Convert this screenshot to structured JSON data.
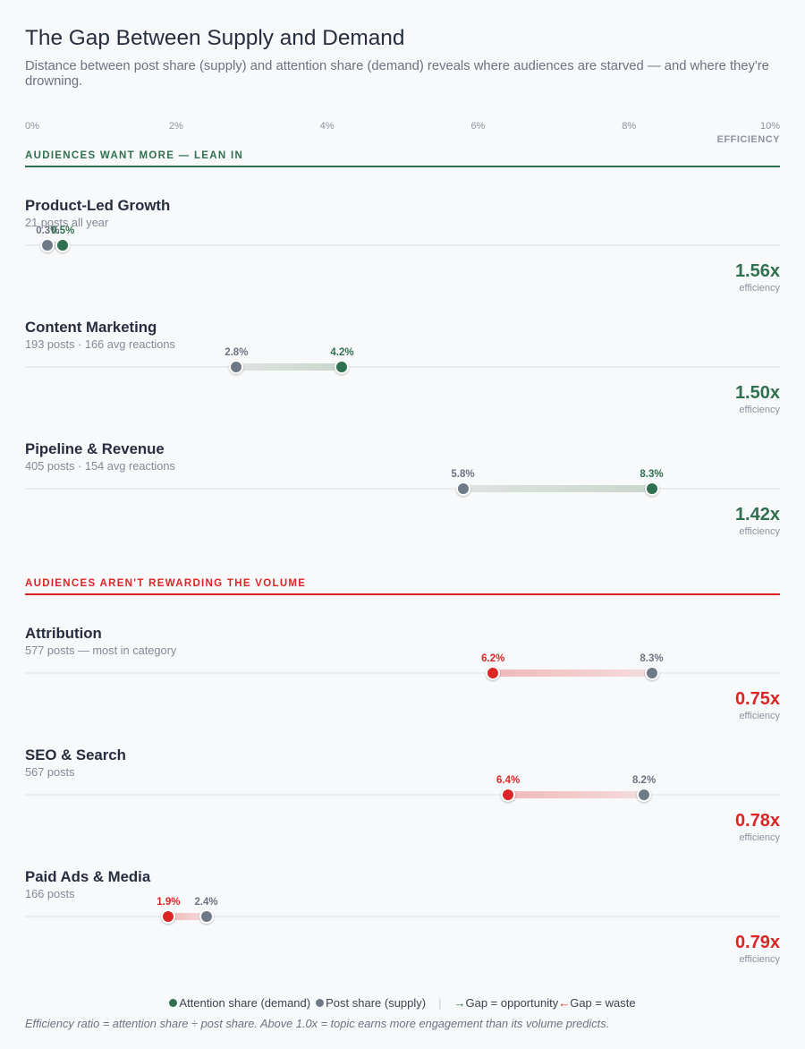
{
  "title": "The Gap Between Supply and Demand",
  "subtitle": "Distance between post share (supply) and attention share (demand) reveals where audiences are starved — and where they're drowning.",
  "axis": {
    "ticks": [
      "0%",
      "2%",
      "4%",
      "6%",
      "8%",
      "10%"
    ],
    "range_pct": [
      0,
      10
    ],
    "efficiency_caption": "EFFICIENCY"
  },
  "colors": {
    "background": "#f8f9fa",
    "positive": "#2f7050",
    "negative": "#dc2626",
    "supply_dot": "#6e7988",
    "text_dark": "#262d3f",
    "text_gray": "#6b7280"
  },
  "chart_data": {
    "type": "dumbbell",
    "x_unit": "% share",
    "sections": [
      {
        "label": "AUDIENCES WANT MORE — LEAN IN",
        "tone": "positive",
        "rows": [
          {
            "name": "Product-Led Growth",
            "meta": "21 posts all year",
            "supply_pct": 0.3,
            "demand_pct": 0.5,
            "efficiency": "1.56x"
          },
          {
            "name": "Content Marketing",
            "meta": "193 posts · 166 avg reactions",
            "supply_pct": 2.8,
            "demand_pct": 4.2,
            "efficiency": "1.50x"
          },
          {
            "name": "Pipeline & Revenue",
            "meta": "405 posts · 154 avg reactions",
            "supply_pct": 5.8,
            "demand_pct": 8.3,
            "efficiency": "1.42x"
          }
        ]
      },
      {
        "label": "AUDIENCES AREN'T REWARDING THE VOLUME",
        "tone": "negative",
        "rows": [
          {
            "name": "Attribution",
            "meta": "577 posts — most in category",
            "supply_pct": 8.3,
            "demand_pct": 6.2,
            "efficiency": "0.75x"
          },
          {
            "name": "SEO & Search",
            "meta": "567 posts",
            "supply_pct": 8.2,
            "demand_pct": 6.4,
            "efficiency": "0.78x"
          },
          {
            "name": "Paid Ads & Media",
            "meta": "166 posts",
            "supply_pct": 2.4,
            "demand_pct": 1.9,
            "efficiency": "0.79x"
          }
        ]
      }
    ],
    "efficiency_unit_label": "efficiency"
  },
  "legend": {
    "demand_label": "Attention share (demand)",
    "supply_label": "Post share (supply)",
    "opportunity_arrow": "→",
    "opportunity_label": "Gap = opportunity",
    "waste_arrow": "←",
    "waste_label": "Gap = waste"
  },
  "footer_note": "Efficiency ratio = attention share ÷ post share. Above 1.0x = topic earns more engagement than its volume predicts."
}
